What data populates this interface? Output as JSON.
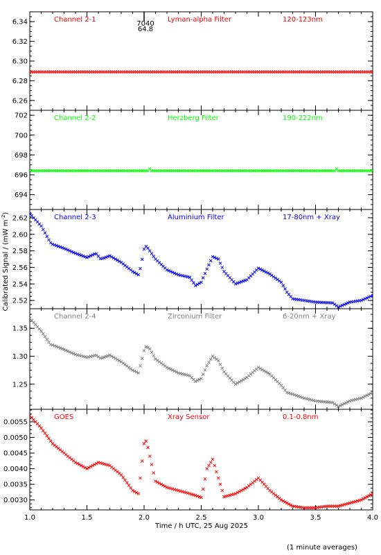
{
  "figure": {
    "ylabel": "Calibrated Signal / (mW m",
    "ylabel_sup": "-2",
    "ylabel_end": ")",
    "xlabel": "Time / h UTC, 25 Aug 2025",
    "footnote": "(1 minute averages)",
    "x_ticks": [
      "1.0",
      "1.5",
      "2.0",
      "2.5",
      "3.0",
      "3.5",
      "4.0"
    ]
  },
  "chart_data": [
    {
      "type": "scatter",
      "marker": "x",
      "color": "#ff0000",
      "labels": [
        "Channel 2-1",
        "Lyman-alpha Filter",
        "120-123nm"
      ],
      "annotation": [
        "7040",
        "64.8"
      ],
      "annotation_x": 2.0,
      "xlim": [
        1.0,
        4.0
      ],
      "ylim": [
        6.25,
        6.35
      ],
      "y_ticks": [
        "6.26",
        "6.28",
        "6.30",
        "6.32",
        "6.34"
      ],
      "x": [
        1.0,
        4.0
      ],
      "y": [
        6.289,
        6.289
      ]
    },
    {
      "type": "scatter",
      "marker": "x",
      "color": "#00ff00",
      "labels": [
        "Channel 2-2",
        "Herzberg Filter",
        "190-222nm"
      ],
      "xlim": [
        1.0,
        4.0
      ],
      "ylim": [
        692.5,
        702.5
      ],
      "y_ticks": [
        "694",
        "696",
        "698",
        "700",
        "702"
      ],
      "x": [
        1.0,
        2.04,
        2.05,
        2.06,
        3.67,
        3.68,
        3.69,
        4.0
      ],
      "y": [
        696.4,
        696.4,
        696.6,
        696.4,
        696.4,
        696.7,
        696.4,
        696.4
      ]
    },
    {
      "type": "scatter",
      "marker": "x",
      "color": "#0000ff",
      "labels": [
        "Channel 2-3",
        "Aluminium Filter",
        "17-80nm + Xray"
      ],
      "xlim": [
        1.0,
        4.0
      ],
      "ylim": [
        2.51,
        2.63
      ],
      "y_ticks": [
        "2.52",
        "2.54",
        "2.56",
        "2.58",
        "2.60",
        "2.62"
      ],
      "x": [
        1.0,
        1.1,
        1.18,
        1.2,
        1.3,
        1.4,
        1.5,
        1.58,
        1.62,
        1.7,
        1.8,
        1.9,
        1.95,
        1.97,
        2.0,
        2.02,
        2.05,
        2.1,
        2.2,
        2.3,
        2.4,
        2.45,
        2.5,
        2.55,
        2.6,
        2.65,
        2.7,
        2.8,
        2.9,
        3.0,
        3.1,
        3.2,
        3.25,
        3.3,
        3.4,
        3.5,
        3.65,
        3.7,
        3.8,
        3.9,
        4.0
      ],
      "y": [
        2.625,
        2.61,
        2.59,
        2.588,
        2.583,
        2.577,
        2.572,
        2.577,
        2.57,
        2.574,
        2.566,
        2.555,
        2.551,
        2.56,
        2.582,
        2.586,
        2.58,
        2.57,
        2.557,
        2.551,
        2.548,
        2.538,
        2.542,
        2.558,
        2.573,
        2.57,
        2.555,
        2.54,
        2.545,
        2.559,
        2.552,
        2.542,
        2.53,
        2.522,
        2.52,
        2.518,
        2.517,
        2.512,
        2.518,
        2.52,
        2.526
      ]
    },
    {
      "type": "scatter",
      "marker": "x",
      "color": "#808080",
      "labels": [
        "Channel 2-4",
        "Zirconium Filter",
        "6-20nm + Xray"
      ],
      "xlim": [
        1.0,
        4.0
      ],
      "ylim": [
        1.205,
        1.385
      ],
      "y_ticks": [
        "1.25",
        "1.30",
        "1.35"
      ],
      "x": [
        1.0,
        1.1,
        1.18,
        1.2,
        1.3,
        1.4,
        1.5,
        1.58,
        1.62,
        1.7,
        1.8,
        1.9,
        1.95,
        1.97,
        2.0,
        2.02,
        2.05,
        2.1,
        2.2,
        2.3,
        2.4,
        2.45,
        2.5,
        2.55,
        2.6,
        2.65,
        2.7,
        2.8,
        2.9,
        3.0,
        3.1,
        3.2,
        3.25,
        3.3,
        3.4,
        3.5,
        3.65,
        3.7,
        3.8,
        3.9,
        4.0
      ],
      "y": [
        1.368,
        1.345,
        1.321,
        1.32,
        1.312,
        1.303,
        1.298,
        1.302,
        1.296,
        1.302,
        1.29,
        1.275,
        1.27,
        1.285,
        1.31,
        1.318,
        1.313,
        1.295,
        1.28,
        1.27,
        1.265,
        1.255,
        1.26,
        1.283,
        1.3,
        1.292,
        1.272,
        1.25,
        1.262,
        1.28,
        1.268,
        1.248,
        1.235,
        1.232,
        1.225,
        1.22,
        1.217,
        1.21,
        1.22,
        1.225,
        1.235
      ]
    },
    {
      "type": "scatter",
      "marker": "x",
      "color": "#ff0000",
      "labels": [
        "GOES",
        "Xray Sensor",
        "0.1-0.8nm"
      ],
      "xlim": [
        1.0,
        4.0
      ],
      "ylim": [
        0.00268,
        0.0059
      ],
      "y_ticks": [
        "0.0030",
        "0.0035",
        "0.0040",
        "0.0045",
        "0.0050",
        "0.0055"
      ],
      "x": [
        1.0,
        1.1,
        1.2,
        1.3,
        1.4,
        1.5,
        1.55,
        1.6,
        1.7,
        1.8,
        1.9,
        1.95,
        1.97,
        2.0,
        2.02,
        2.05,
        2.1,
        2.2,
        2.3,
        2.4,
        2.5,
        2.52,
        2.55,
        2.6,
        2.65,
        2.7,
        2.8,
        2.9,
        3.0,
        3.1,
        3.2,
        3.3,
        3.4,
        3.5,
        3.6,
        3.7,
        3.8,
        3.9,
        4.0
      ],
      "y": [
        0.0057,
        0.0053,
        0.0048,
        0.0045,
        0.0042,
        0.004,
        0.0041,
        0.0042,
        0.0041,
        0.0038,
        0.0033,
        0.0032,
        0.0038,
        0.0048,
        0.0049,
        0.0044,
        0.0036,
        0.0034,
        0.0033,
        0.0032,
        0.00308,
        0.0034,
        0.004,
        0.0043,
        0.0037,
        0.0031,
        0.0032,
        0.0034,
        0.0037,
        0.0033,
        0.003,
        0.0028,
        0.00275,
        0.00275,
        0.0028,
        0.0028,
        0.0029,
        0.003,
        0.0032
      ]
    }
  ]
}
